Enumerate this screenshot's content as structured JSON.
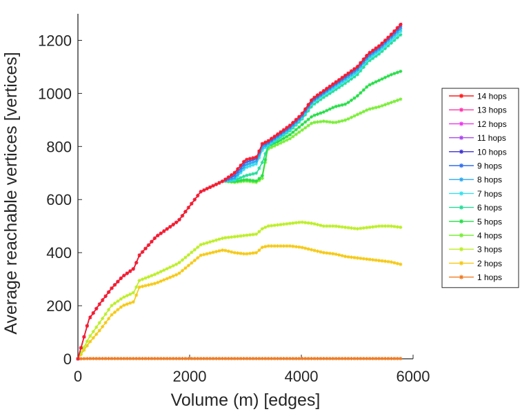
{
  "chart_data": {
    "type": "line",
    "title": "",
    "xlabel": "Volume (m) [edges]",
    "ylabel": "Average reachable vertices [vertices]",
    "xlim": [
      0,
      6000
    ],
    "ylim": [
      0,
      1300
    ],
    "xticks": [
      0,
      2000,
      4000,
      6000
    ],
    "xtick_labels": [
      "0",
      "2000",
      "4000",
      "6000"
    ],
    "yticks": [
      0,
      200,
      400,
      600,
      800,
      1000,
      1200
    ],
    "ytick_labels": [
      "0",
      "200",
      "400",
      "600",
      "800",
      "1000",
      "1200"
    ],
    "grid": false,
    "legend_position": "right",
    "x": [
      0,
      200,
      400,
      600,
      800,
      1000,
      1100,
      1400,
      1800,
      2200,
      2600,
      2800,
      3000,
      3200,
      3300,
      3400,
      3600,
      3800,
      4000,
      4200,
      4400,
      4600,
      4800,
      5000,
      5200,
      5400,
      5600,
      5800
    ],
    "series": [
      {
        "name": "14 hops",
        "color": "#ff1a1a",
        "values": [
          0,
          150,
          210,
          265,
          310,
          340,
          390,
          460,
          520,
          630,
          670,
          700,
          750,
          760,
          810,
          820,
          850,
          880,
          920,
          980,
          1010,
          1040,
          1070,
          1100,
          1150,
          1180,
          1220,
          1265
        ]
      },
      {
        "name": "13 hops",
        "color": "#ff33aa",
        "values": [
          0,
          150,
          210,
          265,
          310,
          340,
          390,
          460,
          520,
          630,
          670,
          700,
          750,
          760,
          810,
          820,
          850,
          880,
          920,
          980,
          1010,
          1040,
          1070,
          1100,
          1150,
          1180,
          1220,
          1265
        ]
      },
      {
        "name": "12 hops",
        "color": "#ee33ee",
        "values": [
          0,
          150,
          210,
          265,
          310,
          340,
          390,
          460,
          520,
          630,
          670,
          700,
          750,
          760,
          810,
          820,
          850,
          880,
          920,
          980,
          1010,
          1040,
          1070,
          1100,
          1150,
          1180,
          1220,
          1265
        ]
      },
      {
        "name": "11 hops",
        "color": "#aa44ee",
        "values": [
          0,
          150,
          210,
          265,
          310,
          340,
          390,
          460,
          520,
          630,
          670,
          700,
          750,
          760,
          810,
          820,
          850,
          880,
          920,
          980,
          1010,
          1040,
          1070,
          1100,
          1150,
          1180,
          1220,
          1265
        ]
      },
      {
        "name": "10 hops",
        "color": "#3a2fd0",
        "values": [
          0,
          150,
          210,
          265,
          310,
          340,
          390,
          460,
          520,
          630,
          670,
          700,
          750,
          760,
          810,
          820,
          850,
          880,
          920,
          980,
          1010,
          1040,
          1070,
          1100,
          1150,
          1180,
          1220,
          1265
        ]
      },
      {
        "name": "9 hops",
        "color": "#2f6fee",
        "values": [
          0,
          150,
          210,
          265,
          310,
          340,
          390,
          460,
          520,
          630,
          670,
          690,
          740,
          755,
          805,
          815,
          845,
          875,
          915,
          975,
          1005,
          1035,
          1065,
          1095,
          1145,
          1175,
          1215,
          1258
        ]
      },
      {
        "name": "8 hops",
        "color": "#2aa8ee",
        "values": [
          0,
          150,
          210,
          265,
          310,
          340,
          390,
          460,
          520,
          630,
          670,
          680,
          730,
          745,
          795,
          810,
          840,
          870,
          910,
          970,
          1000,
          1030,
          1058,
          1088,
          1138,
          1168,
          1208,
          1248
        ]
      },
      {
        "name": "7 hops",
        "color": "#33e0ee",
        "values": [
          0,
          150,
          210,
          265,
          310,
          340,
          390,
          460,
          520,
          630,
          670,
          675,
          720,
          735,
          785,
          805,
          835,
          865,
          905,
          965,
          995,
          1022,
          1050,
          1080,
          1130,
          1160,
          1198,
          1238
        ]
      },
      {
        "name": "6 hops",
        "color": "#22dd99",
        "values": [
          0,
          150,
          210,
          265,
          310,
          340,
          390,
          460,
          520,
          630,
          670,
          672,
          690,
          700,
          740,
          800,
          830,
          860,
          900,
          955,
          985,
          1012,
          1040,
          1070,
          1120,
          1150,
          1188,
          1225
        ]
      },
      {
        "name": "5 hops",
        "color": "#22dd44",
        "values": [
          0,
          150,
          210,
          265,
          310,
          340,
          390,
          460,
          520,
          630,
          670,
          668,
          675,
          670,
          690,
          800,
          820,
          845,
          880,
          915,
          930,
          950,
          960,
          990,
          1030,
          1050,
          1070,
          1085
        ]
      },
      {
        "name": "4 hops",
        "color": "#77ee33",
        "values": [
          0,
          150,
          210,
          265,
          310,
          340,
          390,
          460,
          520,
          630,
          670,
          665,
          670,
          665,
          680,
          790,
          810,
          830,
          860,
          890,
          895,
          890,
          900,
          920,
          940,
          950,
          965,
          980
        ]
      },
      {
        "name": "3 hops",
        "color": "#bbee22",
        "values": [
          0,
          80,
          140,
          200,
          230,
          250,
          295,
          320,
          360,
          430,
          455,
          460,
          465,
          470,
          490,
          500,
          505,
          510,
          515,
          510,
          500,
          500,
          495,
          490,
          495,
          500,
          500,
          495
        ]
      },
      {
        "name": "2 hops",
        "color": "#f5c810",
        "values": [
          0,
          60,
          110,
          165,
          200,
          215,
          270,
          285,
          320,
          390,
          410,
          400,
          395,
          400,
          420,
          425,
          425,
          425,
          420,
          410,
          400,
          395,
          385,
          380,
          375,
          370,
          365,
          355
        ]
      },
      {
        "name": "1 hops",
        "color": "#f07a20",
        "values": [
          0,
          1,
          1,
          1,
          1,
          1,
          1,
          1,
          1,
          1,
          1,
          1,
          1,
          1,
          1,
          1,
          1,
          1,
          1,
          1,
          1,
          1,
          1,
          1,
          1,
          1,
          1,
          1
        ]
      }
    ]
  }
}
